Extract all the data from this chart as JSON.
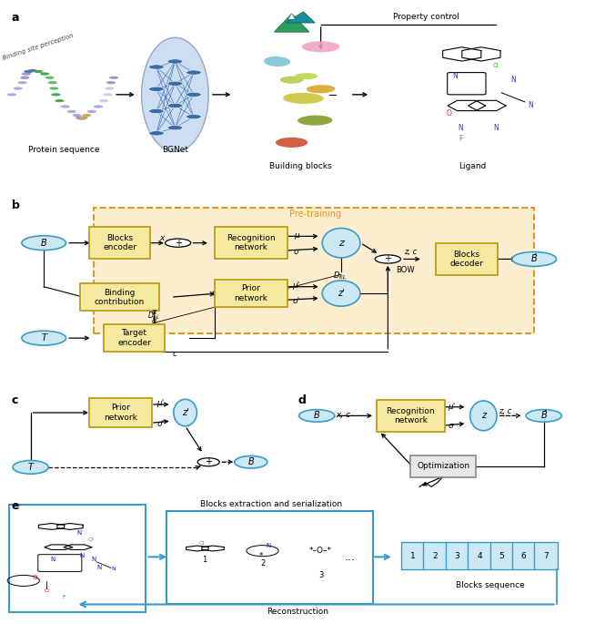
{
  "colors": {
    "blue_fill": "#cce8f4",
    "blue_border": "#3a9bc8",
    "gold_fill": "#f5e9a0",
    "gold_border": "#b8960a",
    "pretrain_bg": "#fdeecf",
    "pretrain_border": "#e0941a",
    "gray_fill": "#e8e8e8",
    "gray_border": "#888888",
    "seq_fill": "#cce8f4",
    "seq_border": "#3a9bc8",
    "black": "#000000",
    "white": "#ffffff"
  },
  "panel_b": {
    "pretraining_label": "Pre-training"
  },
  "panel_e": {
    "sequence_labels": [
      "1",
      "2",
      "3",
      "4",
      "5",
      "6",
      "7"
    ],
    "blocks_extraction": "Blocks extraction and serialization",
    "blocks_sequence": "Blocks sequence",
    "reconstruction": "Reconstruction"
  }
}
